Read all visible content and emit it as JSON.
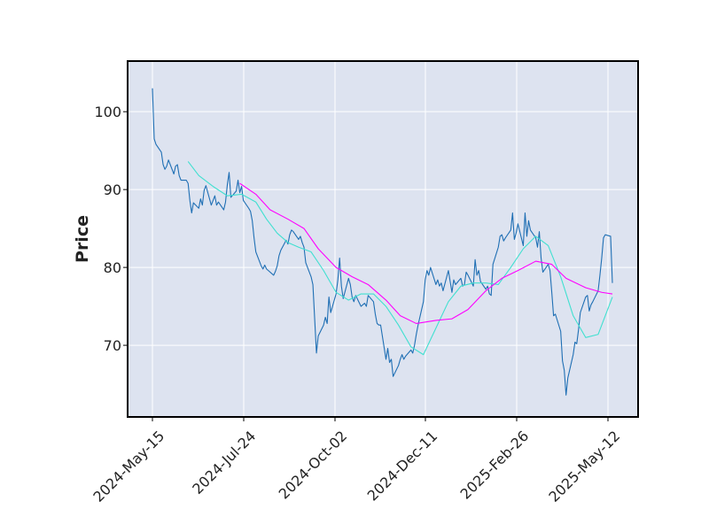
{
  "chart_data": {
    "type": "line",
    "title": "",
    "xlabel": "",
    "ylabel": "Price",
    "x_tick_labels": [
      "2024-May-15",
      "2024-Jul-24",
      "2024-Oct-02",
      "2024-Dec-11",
      "2025-Feb-26",
      "2025-May-12"
    ],
    "y_ticks": [
      70,
      80,
      90,
      100
    ],
    "ylim": [
      60.8,
      106.5
    ],
    "xlim": [
      "2024-Apr-28",
      "2025-May-22"
    ],
    "grid": true,
    "legend": "none",
    "colors": {
      "background": "#dde3f0",
      "grid": "#ffffff",
      "close": "#1f6fb4",
      "ma_short": "#40e0d0",
      "ma_long": "#ff00ff"
    },
    "series": [
      {
        "style": "close",
        "color": "#1f6fb4",
        "points": [
          [
            "2024-05-15",
            103.0
          ],
          [
            "2024-05-16",
            96.5
          ],
          [
            "2024-05-17",
            95.8
          ],
          [
            "2024-05-20",
            94.8
          ],
          [
            "2024-05-21",
            93.2
          ],
          [
            "2024-05-22",
            92.6
          ],
          [
            "2024-05-23",
            93.0
          ],
          [
            "2024-05-24",
            93.8
          ],
          [
            "2024-05-27",
            92.0
          ],
          [
            "2024-05-28",
            93.0
          ],
          [
            "2024-05-29",
            93.2
          ],
          [
            "2024-05-30",
            91.8
          ],
          [
            "2024-05-31",
            91.2
          ],
          [
            "2024-06-03",
            91.2
          ],
          [
            "2024-06-04",
            90.8
          ],
          [
            "2024-06-05",
            88.6
          ],
          [
            "2024-06-06",
            87.0
          ],
          [
            "2024-06-07",
            88.3
          ],
          [
            "2024-06-10",
            87.6
          ],
          [
            "2024-06-11",
            88.8
          ],
          [
            "2024-06-12",
            88.0
          ],
          [
            "2024-06-13",
            89.9
          ],
          [
            "2024-06-14",
            90.5
          ],
          [
            "2024-06-17",
            88.0
          ],
          [
            "2024-06-18",
            88.6
          ],
          [
            "2024-06-19",
            89.2
          ],
          [
            "2024-06-20",
            88.0
          ],
          [
            "2024-06-21",
            88.4
          ],
          [
            "2024-06-24",
            87.4
          ],
          [
            "2024-06-25",
            88.4
          ],
          [
            "2024-06-26",
            90.6
          ],
          [
            "2024-06-27",
            92.2
          ],
          [
            "2024-06-28",
            89.0
          ],
          [
            "2024-07-01",
            89.8
          ],
          [
            "2024-07-02",
            91.2
          ],
          [
            "2024-07-03",
            89.6
          ],
          [
            "2024-07-04",
            90.4
          ],
          [
            "2024-07-05",
            88.6
          ],
          [
            "2024-07-08",
            87.6
          ],
          [
            "2024-07-09",
            87.2
          ],
          [
            "2024-07-10",
            86.0
          ],
          [
            "2024-07-11",
            83.8
          ],
          [
            "2024-07-12",
            82.0
          ],
          [
            "2024-07-15",
            80.2
          ],
          [
            "2024-07-16",
            79.8
          ],
          [
            "2024-07-17",
            80.3
          ],
          [
            "2024-07-18",
            79.8
          ],
          [
            "2024-07-19",
            79.6
          ],
          [
            "2024-07-22",
            79.0
          ],
          [
            "2024-07-23",
            79.5
          ],
          [
            "2024-07-24",
            80.2
          ],
          [
            "2024-07-25",
            81.5
          ],
          [
            "2024-07-26",
            82.2
          ],
          [
            "2024-07-29",
            83.5
          ],
          [
            "2024-07-30",
            83.0
          ],
          [
            "2024-07-31",
            84.2
          ],
          [
            "2024-08-01",
            84.8
          ],
          [
            "2024-08-02",
            84.6
          ],
          [
            "2024-08-05",
            83.6
          ],
          [
            "2024-08-06",
            84.0
          ],
          [
            "2024-08-07",
            83.2
          ],
          [
            "2024-08-08",
            82.6
          ],
          [
            "2024-08-09",
            80.6
          ],
          [
            "2024-08-12",
            78.8
          ],
          [
            "2024-08-13",
            77.8
          ],
          [
            "2024-08-14",
            73.4
          ],
          [
            "2024-08-15",
            69.0
          ],
          [
            "2024-08-16",
            71.2
          ],
          [
            "2024-08-19",
            72.6
          ],
          [
            "2024-08-20",
            73.6
          ],
          [
            "2024-08-21",
            72.8
          ],
          [
            "2024-08-22",
            76.2
          ],
          [
            "2024-08-23",
            74.2
          ],
          [
            "2024-08-26",
            76.6
          ],
          [
            "2024-08-27",
            78.4
          ],
          [
            "2024-08-28",
            81.2
          ],
          [
            "2024-08-29",
            77.6
          ],
          [
            "2024-08-30",
            76.0
          ],
          [
            "2024-09-02",
            78.6
          ],
          [
            "2024-09-03",
            77.8
          ],
          [
            "2024-09-04",
            76.2
          ],
          [
            "2024-09-05",
            75.6
          ],
          [
            "2024-09-06",
            76.4
          ],
          [
            "2024-09-09",
            75.0
          ],
          [
            "2024-09-10",
            75.2
          ],
          [
            "2024-09-11",
            75.4
          ],
          [
            "2024-09-12",
            75.0
          ],
          [
            "2024-09-13",
            76.4
          ],
          [
            "2024-09-16",
            75.6
          ],
          [
            "2024-09-17",
            74.0
          ],
          [
            "2024-09-18",
            72.8
          ],
          [
            "2024-09-19",
            72.6
          ],
          [
            "2024-09-20",
            72.6
          ],
          [
            "2024-09-23",
            68.2
          ],
          [
            "2024-09-24",
            69.6
          ],
          [
            "2024-09-25",
            67.8
          ],
          [
            "2024-09-26",
            68.2
          ],
          [
            "2024-09-27",
            66.0
          ],
          [
            "2024-09-30",
            67.4
          ],
          [
            "2024-10-01",
            68.2
          ],
          [
            "2024-10-02",
            68.8
          ],
          [
            "2024-10-03",
            68.2
          ],
          [
            "2024-10-04",
            68.6
          ],
          [
            "2024-10-07",
            69.4
          ],
          [
            "2024-10-08",
            69.0
          ],
          [
            "2024-10-09",
            70.0
          ],
          [
            "2024-10-10",
            71.4
          ],
          [
            "2024-10-11",
            72.6
          ],
          [
            "2024-10-14",
            75.6
          ],
          [
            "2024-10-15",
            78.4
          ],
          [
            "2024-10-16",
            79.6
          ],
          [
            "2024-10-17",
            79.0
          ],
          [
            "2024-10-18",
            80.0
          ],
          [
            "2024-10-21",
            77.8
          ],
          [
            "2024-10-22",
            78.4
          ],
          [
            "2024-10-23",
            77.6
          ],
          [
            "2024-10-24",
            78.0
          ],
          [
            "2024-10-25",
            77.0
          ],
          [
            "2024-10-28",
            79.6
          ],
          [
            "2024-10-29",
            78.2
          ],
          [
            "2024-10-30",
            76.8
          ],
          [
            "2024-10-31",
            78.4
          ],
          [
            "2024-11-01",
            77.8
          ],
          [
            "2024-11-04",
            78.6
          ],
          [
            "2024-11-05",
            77.6
          ],
          [
            "2024-11-06",
            77.8
          ],
          [
            "2024-11-07",
            79.4
          ],
          [
            "2024-11-08",
            79.0
          ],
          [
            "2024-11-11",
            77.6
          ],
          [
            "2024-11-12",
            81.0
          ],
          [
            "2024-11-13",
            79.0
          ],
          [
            "2024-11-14",
            79.6
          ],
          [
            "2024-11-15",
            78.2
          ],
          [
            "2024-11-18",
            77.2
          ],
          [
            "2024-11-19",
            77.6
          ],
          [
            "2024-11-20",
            76.6
          ],
          [
            "2024-11-21",
            76.4
          ],
          [
            "2024-11-22",
            80.4
          ],
          [
            "2024-11-25",
            82.6
          ],
          [
            "2024-11-26",
            84.0
          ],
          [
            "2024-11-27",
            84.2
          ],
          [
            "2024-11-28",
            83.4
          ],
          [
            "2024-11-29",
            83.8
          ],
          [
            "2024-12-02",
            84.8
          ],
          [
            "2024-12-03",
            87.0
          ],
          [
            "2024-12-04",
            83.6
          ],
          [
            "2024-12-05",
            84.4
          ],
          [
            "2024-12-06",
            85.6
          ],
          [
            "2024-12-09",
            82.8
          ],
          [
            "2024-12-10",
            87.0
          ],
          [
            "2024-12-11",
            84.0
          ],
          [
            "2024-12-12",
            86.0
          ],
          [
            "2024-12-13",
            84.8
          ],
          [
            "2024-12-16",
            83.8
          ],
          [
            "2024-12-17",
            82.6
          ],
          [
            "2024-12-18",
            84.6
          ],
          [
            "2024-12-19",
            81.2
          ],
          [
            "2024-12-20",
            79.4
          ],
          [
            "2024-12-23",
            80.4
          ],
          [
            "2024-12-24",
            79.6
          ],
          [
            "2024-12-25",
            76.8
          ],
          [
            "2024-12-26",
            73.8
          ],
          [
            "2024-12-27",
            74.0
          ],
          [
            "2024-12-30",
            71.8
          ],
          [
            "2024-12-31",
            68.0
          ],
          [
            "2025-01-01",
            66.8
          ],
          [
            "2025-01-02",
            63.6
          ],
          [
            "2025-01-03",
            65.8
          ],
          [
            "2025-01-06",
            68.8
          ],
          [
            "2025-01-07",
            70.4
          ],
          [
            "2025-01-08",
            70.2
          ],
          [
            "2025-01-09",
            72.0
          ],
          [
            "2025-01-10",
            74.2
          ],
          [
            "2025-01-13",
            76.2
          ],
          [
            "2025-01-14",
            76.4
          ],
          [
            "2025-01-15",
            74.4
          ],
          [
            "2025-01-16",
            75.2
          ],
          [
            "2025-01-17",
            75.6
          ],
          [
            "2025-01-20",
            77.0
          ],
          [
            "2025-01-21",
            79.0
          ],
          [
            "2025-01-22",
            81.2
          ],
          [
            "2025-01-23",
            83.8
          ],
          [
            "2025-01-24",
            84.2
          ],
          [
            "2025-01-27",
            84.0
          ],
          [
            "2025-01-28",
            78.0
          ]
        ]
      },
      {
        "style": "ma_short",
        "color": "#40e0d0",
        "points": [
          [
            "2024-06-04",
            93.6
          ],
          [
            "2024-06-10",
            91.8
          ],
          [
            "2024-06-18",
            90.4
          ],
          [
            "2024-06-26",
            89.2
          ],
          [
            "2024-07-04",
            89.4
          ],
          [
            "2024-07-12",
            88.4
          ],
          [
            "2024-07-18",
            86.2
          ],
          [
            "2024-07-24",
            84.4
          ],
          [
            "2024-07-30",
            83.2
          ],
          [
            "2024-08-05",
            82.6
          ],
          [
            "2024-08-12",
            82.0
          ],
          [
            "2024-08-19",
            79.6
          ],
          [
            "2024-08-26",
            76.8
          ],
          [
            "2024-09-02",
            75.8
          ],
          [
            "2024-09-09",
            76.6
          ],
          [
            "2024-09-16",
            76.6
          ],
          [
            "2024-09-23",
            75.0
          ],
          [
            "2024-09-30",
            72.6
          ],
          [
            "2024-10-07",
            69.8
          ],
          [
            "2024-10-14",
            68.8
          ],
          [
            "2024-10-21",
            72.2
          ],
          [
            "2024-10-28",
            75.6
          ],
          [
            "2024-11-04",
            77.6
          ],
          [
            "2024-11-11",
            78.0
          ],
          [
            "2024-11-18",
            78.0
          ],
          [
            "2024-11-25",
            77.8
          ],
          [
            "2024-12-02",
            80.0
          ],
          [
            "2024-12-09",
            82.4
          ],
          [
            "2024-12-16",
            84.0
          ],
          [
            "2024-12-23",
            82.8
          ],
          [
            "2024-12-30",
            78.8
          ],
          [
            "2025-01-06",
            73.8
          ],
          [
            "2025-01-13",
            71.0
          ],
          [
            "2025-01-20",
            71.4
          ],
          [
            "2025-01-28",
            76.2
          ]
        ]
      },
      {
        "style": "ma_long",
        "color": "#ff00ff",
        "points": [
          [
            "2024-07-03",
            90.8
          ],
          [
            "2024-07-12",
            89.4
          ],
          [
            "2024-07-20",
            87.4
          ],
          [
            "2024-07-30",
            86.2
          ],
          [
            "2024-08-08",
            85.0
          ],
          [
            "2024-08-16",
            82.4
          ],
          [
            "2024-08-26",
            80.0
          ],
          [
            "2024-09-04",
            78.8
          ],
          [
            "2024-09-13",
            77.8
          ],
          [
            "2024-09-23",
            75.8
          ],
          [
            "2024-10-01",
            73.8
          ],
          [
            "2024-10-10",
            72.8
          ],
          [
            "2024-10-21",
            73.2
          ],
          [
            "2024-10-30",
            73.4
          ],
          [
            "2024-11-08",
            74.6
          ],
          [
            "2024-11-18",
            77.0
          ],
          [
            "2024-11-27",
            78.6
          ],
          [
            "2024-12-06",
            79.6
          ],
          [
            "2024-12-16",
            80.8
          ],
          [
            "2024-12-25",
            80.4
          ],
          [
            "2025-01-02",
            78.6
          ],
          [
            "2025-01-13",
            77.4
          ],
          [
            "2025-01-22",
            76.8
          ],
          [
            "2025-01-28",
            76.6
          ]
        ]
      }
    ]
  }
}
